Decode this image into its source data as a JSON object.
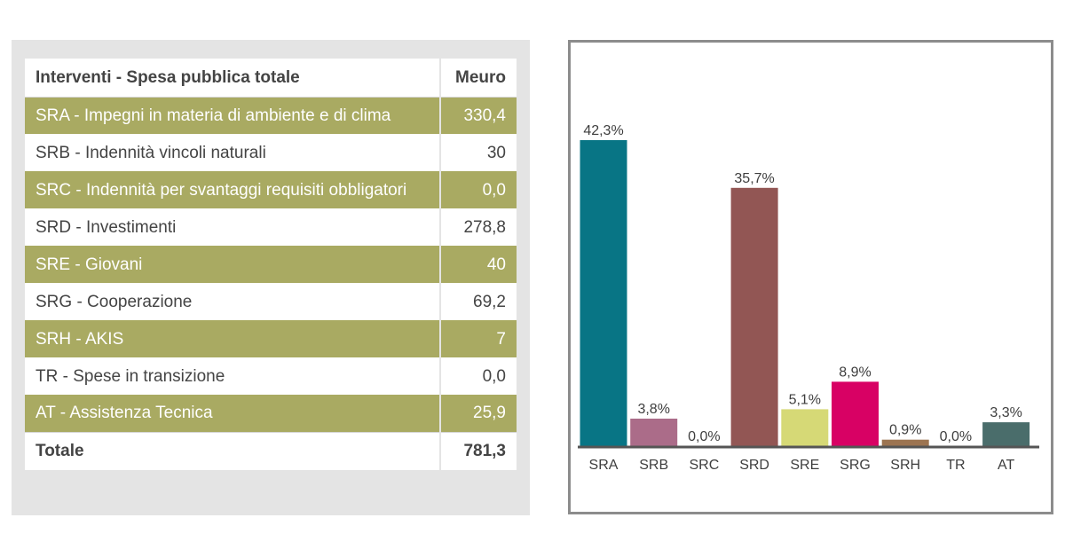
{
  "table": {
    "header": {
      "name": "Interventi - Spesa pubblica totale",
      "unit": "Meuro"
    },
    "rows": [
      {
        "label": "SRA - Impegni in materia di ambiente e di clima",
        "value": "330,4",
        "highlight": true
      },
      {
        "label": "SRB - Indennità vincoli naturali",
        "value": "30",
        "highlight": false
      },
      {
        "label": "SRC - Indennità per svantaggi requisiti obbligatori",
        "value": "0,0",
        "highlight": true
      },
      {
        "label": "SRD - Investimenti",
        "value": "278,8",
        "highlight": false
      },
      {
        "label": "SRE - Giovani",
        "value": "40",
        "highlight": true
      },
      {
        "label": "SRG - Cooperazione",
        "value": "69,2",
        "highlight": false
      },
      {
        "label": "SRH - AKIS",
        "value": "7",
        "highlight": true
      },
      {
        "label": "TR - Spese in transizione",
        "value": "0,0",
        "highlight": false
      },
      {
        "label": "AT - Assistenza Tecnica",
        "value": "25,9",
        "highlight": true
      }
    ],
    "total": {
      "label": "Totale",
      "value": "781,3"
    },
    "colors": {
      "highlight_row": "#a9aa62",
      "plain_row": "#ffffff",
      "panel": "#e4e4e4"
    }
  },
  "chart_data": {
    "type": "bar",
    "categories": [
      "SRA",
      "SRB",
      "SRC",
      "SRD",
      "SRE",
      "SRG",
      "SRH",
      "TR",
      "AT"
    ],
    "values": [
      42.3,
      3.8,
      0.0,
      35.7,
      5.1,
      8.9,
      0.9,
      0.0,
      3.3
    ],
    "value_labels": [
      "42,3%",
      "3,8%",
      "0,0%",
      "35,7%",
      "5,1%",
      "8,9%",
      "0,9%",
      "0,0%",
      "3,3%"
    ],
    "colors": [
      "#087585",
      "#ab6c89",
      "#8c8c8c",
      "#925654",
      "#d6d976",
      "#d80164",
      "#9c7451",
      "#8c8c8c",
      "#4a6d6b"
    ],
    "title": "",
    "xlabel": "",
    "ylabel": "",
    "ylim": [
      0,
      42.3
    ],
    "grid": false,
    "legend": "none"
  }
}
